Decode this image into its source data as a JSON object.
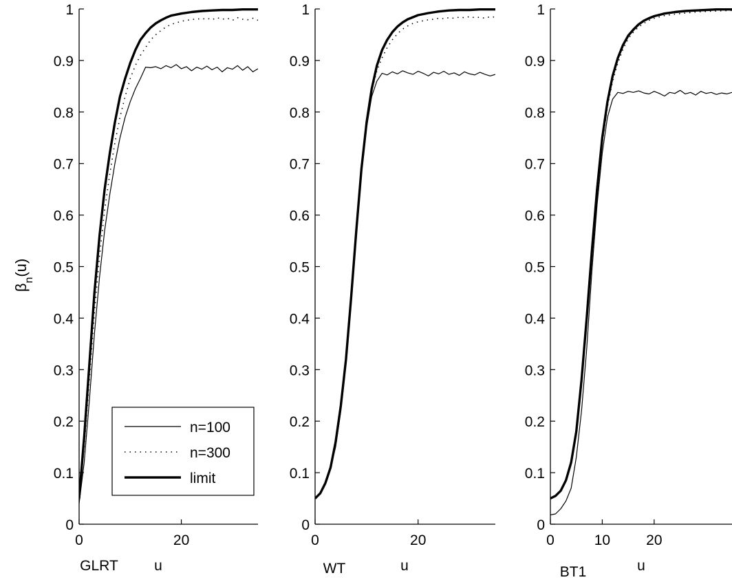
{
  "ylabel_main": "β",
  "ylabel_sub": "n",
  "ylabel_tail": "(u)",
  "legend": [
    {
      "label": "n=100",
      "style": "thin"
    },
    {
      "label": "n=300",
      "style": "dotted"
    },
    {
      "label": "limit",
      "style": "thick"
    }
  ],
  "chart_data": [
    {
      "type": "line",
      "caption": "GLRT",
      "xlabel": "u",
      "xlim": [
        0,
        35
      ],
      "ylim": [
        0,
        1
      ],
      "xticks": [
        0,
        20
      ],
      "yticks": [
        0,
        0.1,
        0.2,
        0.3,
        0.4,
        0.5,
        0.6,
        0.7,
        0.8,
        0.9,
        1
      ],
      "ytick_labels": [
        "0",
        "0.1",
        "0.2",
        "0.3",
        "0.4",
        "0.5",
        "0.6",
        "0.7",
        "0.8",
        "0.9",
        "1"
      ],
      "series": [
        {
          "name": "n=100",
          "style": "thin",
          "x": [
            0,
            1,
            2,
            3,
            4,
            5,
            6,
            7,
            8,
            9,
            10,
            11,
            12,
            13,
            14,
            15,
            16,
            17,
            18,
            19,
            20,
            21,
            22,
            23,
            24,
            25,
            26,
            27,
            28,
            29,
            30,
            31,
            32,
            33,
            34,
            35
          ],
          "y": [
            0.04,
            0.12,
            0.24,
            0.37,
            0.48,
            0.57,
            0.64,
            0.7,
            0.75,
            0.79,
            0.82,
            0.845,
            0.865,
            0.887,
            0.886,
            0.888,
            0.884,
            0.89,
            0.886,
            0.892,
            0.884,
            0.888,
            0.88,
            0.887,
            0.883,
            0.889,
            0.882,
            0.887,
            0.878,
            0.886,
            0.883,
            0.89,
            0.881,
            0.888,
            0.878,
            0.884
          ]
        },
        {
          "name": "n=300",
          "style": "dotted",
          "x": [
            0,
            1,
            2,
            3,
            4,
            5,
            6,
            7,
            8,
            9,
            10,
            11,
            12,
            13,
            14,
            15,
            16,
            17,
            18,
            19,
            20,
            21,
            22,
            23,
            24,
            25,
            26,
            27,
            28,
            29,
            30,
            31,
            32,
            33,
            34,
            35
          ],
          "y": [
            0.05,
            0.15,
            0.28,
            0.41,
            0.52,
            0.61,
            0.68,
            0.74,
            0.79,
            0.83,
            0.865,
            0.89,
            0.91,
            0.925,
            0.94,
            0.95,
            0.958,
            0.965,
            0.97,
            0.973,
            0.976,
            0.978,
            0.979,
            0.981,
            0.98,
            0.982,
            0.979,
            0.983,
            0.98,
            0.982,
            0.978,
            0.983,
            0.98,
            0.979,
            0.982,
            0.978
          ]
        },
        {
          "name": "limit",
          "style": "thick",
          "x": [
            0,
            1,
            2,
            3,
            4,
            5,
            6,
            7,
            8,
            9,
            10,
            11,
            12,
            13,
            14,
            15,
            16,
            17,
            18,
            19,
            20,
            22,
            24,
            26,
            28,
            30,
            32,
            35
          ],
          "y": [
            0.05,
            0.17,
            0.31,
            0.45,
            0.56,
            0.65,
            0.72,
            0.78,
            0.83,
            0.865,
            0.895,
            0.92,
            0.94,
            0.953,
            0.964,
            0.972,
            0.978,
            0.983,
            0.987,
            0.989,
            0.991,
            0.994,
            0.996,
            0.997,
            0.998,
            0.998,
            0.999,
            0.999
          ]
        }
      ]
    },
    {
      "type": "line",
      "caption": "WT",
      "xlabel": "u",
      "xlim": [
        0,
        35
      ],
      "ylim": [
        0,
        1
      ],
      "xticks": [
        0,
        20
      ],
      "yticks": [
        0,
        0.1,
        0.2,
        0.3,
        0.4,
        0.5,
        0.6,
        0.7,
        0.8,
        0.9,
        1
      ],
      "ytick_labels": [
        "0",
        "0.1",
        "0.2",
        "0.3",
        "0.4",
        "0.5",
        "0.6",
        "0.7",
        "0.8",
        "0.9",
        "1"
      ],
      "series": [
        {
          "name": "n=100",
          "style": "thin",
          "x": [
            0,
            1,
            2,
            3,
            4,
            5,
            6,
            7,
            8,
            9,
            10,
            11,
            12,
            13,
            14,
            15,
            16,
            17,
            18,
            19,
            20,
            21,
            22,
            23,
            24,
            25,
            26,
            27,
            28,
            29,
            30,
            31,
            32,
            33,
            34,
            35
          ],
          "y": [
            0.05,
            0.06,
            0.08,
            0.11,
            0.15,
            0.22,
            0.31,
            0.43,
            0.56,
            0.68,
            0.77,
            0.83,
            0.86,
            0.875,
            0.872,
            0.878,
            0.874,
            0.88,
            0.876,
            0.873,
            0.879,
            0.875,
            0.87,
            0.877,
            0.874,
            0.879,
            0.873,
            0.876,
            0.871,
            0.878,
            0.874,
            0.872,
            0.877,
            0.873,
            0.87,
            0.873
          ]
        },
        {
          "name": "n=300",
          "style": "dotted",
          "x": [
            0,
            1,
            2,
            3,
            4,
            5,
            6,
            7,
            8,
            9,
            10,
            11,
            12,
            13,
            14,
            15,
            16,
            17,
            18,
            19,
            20,
            21,
            22,
            23,
            24,
            25,
            26,
            27,
            28,
            29,
            30,
            31,
            32,
            33,
            34,
            35
          ],
          "y": [
            0.05,
            0.06,
            0.08,
            0.11,
            0.16,
            0.23,
            0.32,
            0.44,
            0.57,
            0.69,
            0.78,
            0.84,
            0.88,
            0.905,
            0.925,
            0.94,
            0.952,
            0.961,
            0.967,
            0.972,
            0.975,
            0.977,
            0.979,
            0.98,
            0.982,
            0.981,
            0.983,
            0.982,
            0.984,
            0.983,
            0.985,
            0.983,
            0.984,
            0.982,
            0.985,
            0.984
          ]
        },
        {
          "name": "limit",
          "style": "thick",
          "x": [
            0,
            1,
            2,
            3,
            4,
            5,
            6,
            7,
            8,
            9,
            10,
            11,
            12,
            13,
            14,
            15,
            16,
            17,
            18,
            19,
            20,
            22,
            24,
            26,
            28,
            30,
            32,
            35
          ],
          "y": [
            0.05,
            0.06,
            0.08,
            0.11,
            0.16,
            0.23,
            0.32,
            0.44,
            0.57,
            0.69,
            0.78,
            0.845,
            0.89,
            0.92,
            0.94,
            0.955,
            0.966,
            0.974,
            0.98,
            0.984,
            0.988,
            0.992,
            0.995,
            0.997,
            0.998,
            0.998,
            0.999,
            0.999
          ]
        }
      ]
    },
    {
      "type": "line",
      "caption": "BT1",
      "xlabel": "u",
      "xlim": [
        0,
        35
      ],
      "ylim": [
        0,
        1
      ],
      "xticks": [
        0,
        10,
        20
      ],
      "yticks": [
        0,
        0.1,
        0.2,
        0.3,
        0.4,
        0.5,
        0.6,
        0.7,
        0.8,
        0.9,
        1
      ],
      "ytick_labels": [
        "0",
        "0.1",
        "0.2",
        "0.3",
        "0.4",
        "0.5",
        "0.6",
        "0.7",
        "0.8",
        "0.9",
        "1"
      ],
      "series": [
        {
          "name": "n=100",
          "style": "thin",
          "x": [
            0,
            1,
            2,
            3,
            4,
            5,
            6,
            7,
            8,
            9,
            10,
            11,
            12,
            13,
            14,
            15,
            16,
            17,
            18,
            19,
            20,
            21,
            22,
            23,
            24,
            25,
            26,
            27,
            28,
            29,
            30,
            31,
            32,
            33,
            34,
            35
          ],
          "y": [
            0.018,
            0.02,
            0.03,
            0.045,
            0.07,
            0.13,
            0.22,
            0.34,
            0.49,
            0.62,
            0.72,
            0.79,
            0.825,
            0.838,
            0.836,
            0.84,
            0.838,
            0.841,
            0.837,
            0.835,
            0.84,
            0.836,
            0.831,
            0.838,
            0.836,
            0.842,
            0.835,
            0.838,
            0.833,
            0.84,
            0.836,
            0.838,
            0.834,
            0.837,
            0.835,
            0.838
          ]
        },
        {
          "name": "n=300",
          "style": "dotted",
          "x": [
            0,
            1,
            2,
            3,
            4,
            5,
            6,
            7,
            8,
            9,
            10,
            11,
            12,
            13,
            14,
            15,
            16,
            17,
            18,
            19,
            20,
            22,
            24,
            26,
            28,
            30,
            32,
            35
          ],
          "y": [
            0.05,
            0.055,
            0.065,
            0.085,
            0.12,
            0.18,
            0.28,
            0.4,
            0.53,
            0.65,
            0.74,
            0.81,
            0.86,
            0.895,
            0.922,
            0.942,
            0.955,
            0.965,
            0.972,
            0.978,
            0.982,
            0.987,
            0.99,
            0.992,
            0.994,
            0.995,
            0.996,
            0.997
          ]
        },
        {
          "name": "limit",
          "style": "thick",
          "x": [
            0,
            1,
            2,
            3,
            4,
            5,
            6,
            7,
            8,
            9,
            10,
            11,
            12,
            13,
            14,
            15,
            16,
            17,
            18,
            19,
            20,
            22,
            24,
            26,
            28,
            30,
            32,
            35
          ],
          "y": [
            0.05,
            0.055,
            0.065,
            0.085,
            0.12,
            0.18,
            0.28,
            0.4,
            0.53,
            0.65,
            0.75,
            0.82,
            0.87,
            0.905,
            0.93,
            0.948,
            0.96,
            0.97,
            0.977,
            0.982,
            0.986,
            0.991,
            0.994,
            0.996,
            0.997,
            0.998,
            0.999,
            0.999
          ]
        }
      ]
    }
  ]
}
